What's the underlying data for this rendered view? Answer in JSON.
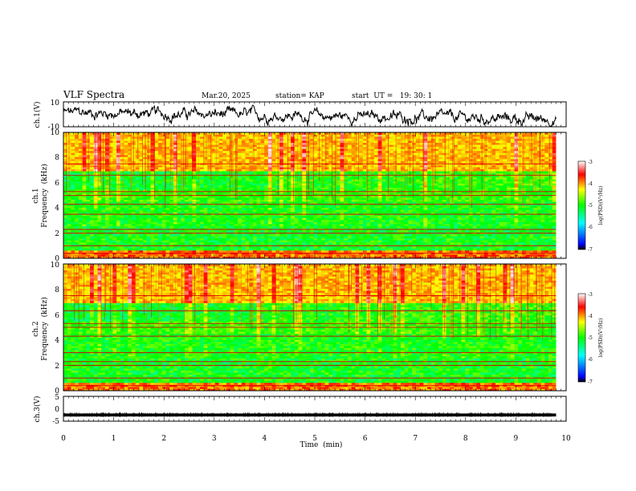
{
  "header": {
    "title": "VLF Spectra",
    "date": "Mar.20, 2025",
    "station": "station= KAP",
    "start": "start  UT =   19: 30: 1"
  },
  "chart_data": [
    {
      "type": "line",
      "panel": "ch1-waveform",
      "ylabel": "ch.1(V)",
      "ylim": [
        -10,
        10
      ],
      "ytick_labels": [
        "10",
        "-10"
      ],
      "xlim": [
        0,
        10
      ],
      "series": [
        {
          "values_note": "",
          "x_range": [
            0,
            9.8
          ],
          "mean_start": 1.5,
          "mean_end": -4,
          "amplitude": 3.5
        }
      ]
    },
    {
      "type": "heatmap",
      "panel": "ch1-spectrogram",
      "ylabel": "ch.1\nFrequency  (kHz)",
      "ylabel_lines": [
        "ch.1",
        "Frequency  (kHz)"
      ],
      "ylim": [
        0,
        10
      ],
      "ytick_labels": [
        "0",
        "2",
        "4",
        "6",
        "8",
        "10"
      ],
      "xlim": [
        0,
        10
      ],
      "data_x_range": [
        0,
        9.8
      ],
      "colorbar": {
        "label": "log(PSD)(V²/Hz)",
        "range": [
          -7,
          -3
        ],
        "tick_labels": [
          "-3",
          "-4",
          "-5",
          "-6",
          "-7"
        ]
      },
      "bands_khz": [
        0.4,
        1.0,
        2.0,
        2.3,
        3.5,
        4.3,
        5.0,
        5.3,
        6.6,
        7.5
      ]
    },
    {
      "type": "heatmap",
      "panel": "ch2-spectrogram",
      "ylabel_lines": [
        "ch.2",
        "Frequency  (kHz)"
      ],
      "ylim": [
        0,
        10
      ],
      "ytick_labels": [
        "0",
        "2",
        "4",
        "6",
        "8",
        "10"
      ],
      "xlim": [
        0,
        10
      ],
      "data_x_range": [
        0,
        9.8
      ],
      "colorbar": {
        "label": "log(PSD)(V²/Hz)",
        "range": [
          -7,
          -3
        ],
        "tick_labels": [
          "-3",
          "-4",
          "-5",
          "-6",
          "-7"
        ]
      },
      "bands_khz": [
        0.4,
        1.0,
        2.0,
        2.3,
        3.0,
        4.3,
        5.0,
        5.3,
        6.3,
        7.5
      ]
    },
    {
      "type": "line",
      "panel": "ch3-waveform",
      "ylabel": "ch.3(V)",
      "ylim": [
        -5,
        5
      ],
      "ytick_labels": [
        "5",
        "0",
        "-5"
      ],
      "xlim": [
        0,
        10
      ],
      "xlabel": "Time  (min)",
      "xtick_labels": [
        "0",
        "1",
        "2",
        "3",
        "4",
        "5",
        "6",
        "7",
        "8",
        "9",
        "10"
      ],
      "series": [
        {
          "x_range": [
            0,
            9.8
          ],
          "level": -2.5,
          "band": 0.6
        }
      ]
    }
  ]
}
